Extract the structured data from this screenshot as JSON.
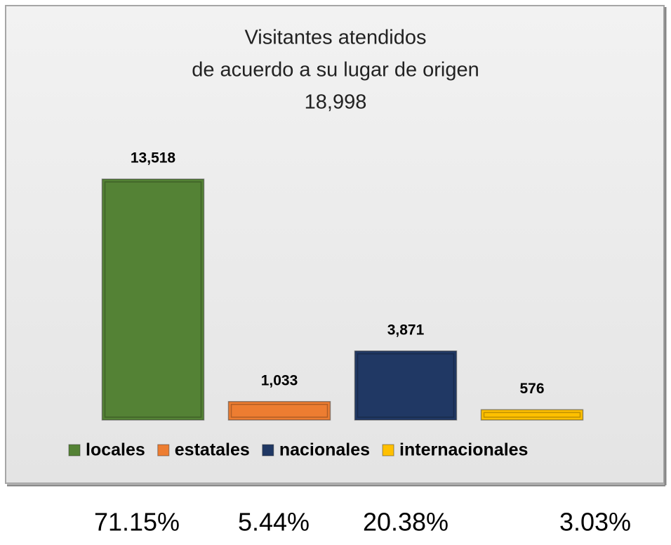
{
  "chart_data": {
    "type": "bar",
    "title": [
      "Visitantes atendidos",
      "de acuerdo a su lugar de origen",
      "18,998"
    ],
    "series": [
      {
        "name": "locales",
        "color": "#548235",
        "values": [
          13518
        ],
        "value_labels": [
          "13,518"
        ]
      },
      {
        "name": "estatales",
        "color": "#ed7d31",
        "values": [
          1033
        ],
        "value_labels": [
          "1,033"
        ]
      },
      {
        "name": "nacionales",
        "color": "#203864",
        "values": [
          3871
        ],
        "value_labels": [
          "3,871"
        ]
      },
      {
        "name": "internacionales",
        "color": "#ffc000",
        "values": [
          576
        ],
        "value_labels": [
          "576"
        ]
      }
    ],
    "legend": "bottom",
    "percent_labels": [
      "71.15%",
      "5.44%",
      "20.38%",
      "3.03%"
    ]
  }
}
